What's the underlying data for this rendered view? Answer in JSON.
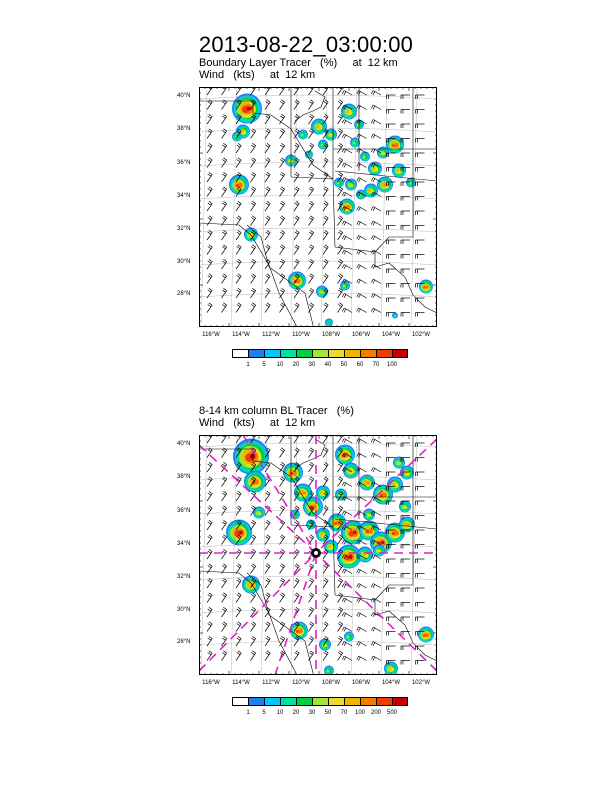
{
  "page_title": "2013-08-22_03:00:00",
  "panels": [
    {
      "line1": "Boundary Layer Tracer   (%)     at  12 km",
      "line2": "Wind   (kts)     at  12 km",
      "lat_labels": [
        "40°N",
        "38°N",
        "36°N",
        "34°N",
        "32°N",
        "30°N",
        "28°N"
      ],
      "lon_labels": [
        "116°W",
        "114°W",
        "112°W",
        "110°W",
        "108°W",
        "106°W",
        "104°W",
        "102°W"
      ],
      "colorbar": {
        "labels": [
          "1",
          "5",
          "10",
          "20",
          "30",
          "40",
          "50",
          "60",
          "70",
          "100"
        ],
        "colors": [
          "#ffffff",
          "#1e7ff0",
          "#00c8ff",
          "#00e0a0",
          "#00d040",
          "#a0e632",
          "#e6dc32",
          "#f0b400",
          "#fa7800",
          "#f03c00",
          "#c80000"
        ]
      }
    },
    {
      "line1": "8-14 km column BL Tracer   (%)",
      "line2": "Wind   (kts)     at  12 km",
      "lat_labels": [
        "40°N",
        "38°N",
        "36°N",
        "34°N",
        "32°N",
        "30°N",
        "28°N"
      ],
      "lon_labels": [
        "116°W",
        "114°W",
        "112°W",
        "110°W",
        "108°W",
        "106°W",
        "104°W",
        "102°W"
      ],
      "colorbar": {
        "labels": [
          "1",
          "5",
          "10",
          "20",
          "30",
          "50",
          "70",
          "100",
          "200",
          "500"
        ],
        "colors": [
          "#ffffff",
          "#1e7ff0",
          "#00c8ff",
          "#00e0a0",
          "#00d040",
          "#a0e632",
          "#e6dc32",
          "#f0b400",
          "#fa7800",
          "#f03c00",
          "#c80000"
        ]
      },
      "marker": "target-marker"
    }
  ]
}
